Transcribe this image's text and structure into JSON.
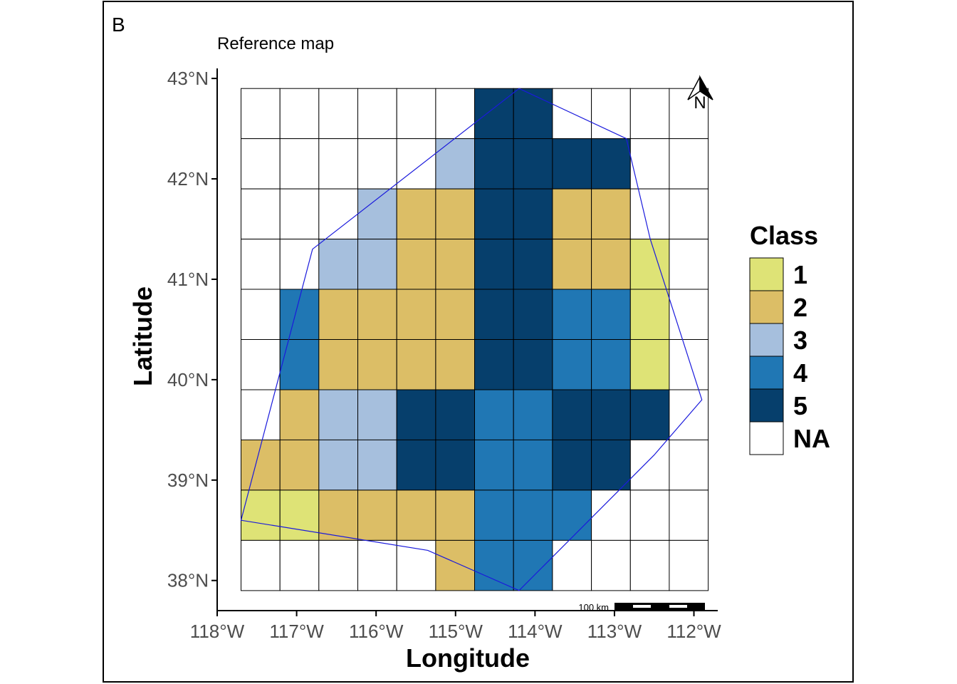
{
  "panel_label": "B",
  "title": "Reference map",
  "xlabel": "Longitude",
  "ylabel": "Latitude",
  "x_ticks": [
    {
      "value": -118,
      "label": "118°W"
    },
    {
      "value": -117,
      "label": "117°W"
    },
    {
      "value": -116,
      "label": "116°W"
    },
    {
      "value": -115,
      "label": "115°W"
    },
    {
      "value": -114,
      "label": "114°W"
    },
    {
      "value": -113,
      "label": "113°W"
    },
    {
      "value": -112,
      "label": "112°W"
    }
  ],
  "y_ticks": [
    {
      "value": 38,
      "label": "38°N"
    },
    {
      "value": 39,
      "label": "39°N"
    },
    {
      "value": 40,
      "label": "40°N"
    },
    {
      "value": 41,
      "label": "41°N"
    },
    {
      "value": 42,
      "label": "42°N"
    },
    {
      "value": 43,
      "label": "43°N"
    }
  ],
  "xlim": [
    -118,
    -111.7
  ],
  "ylim": [
    37.7,
    43.1
  ],
  "grid": {
    "lon_start": -117.7,
    "lat_top": 42.9,
    "cell_lon": 0.49,
    "cell_lat": 0.5,
    "rows": [
      [
        "NA",
        "NA",
        "NA",
        "NA",
        "NA",
        "NA",
        "5",
        "5",
        "NA",
        "NA",
        "NA",
        "NA"
      ],
      [
        "NA",
        "NA",
        "NA",
        "NA",
        "NA",
        "3",
        "5",
        "5",
        "5",
        "5",
        "NA",
        "NA"
      ],
      [
        "NA",
        "NA",
        "NA",
        "3",
        "2",
        "2",
        "5",
        "5",
        "2",
        "2",
        "NA",
        "NA"
      ],
      [
        "NA",
        "NA",
        "3",
        "3",
        "2",
        "2",
        "5",
        "5",
        "2",
        "2",
        "1",
        "NA"
      ],
      [
        "NA",
        "4",
        "2",
        "2",
        "2",
        "2",
        "5",
        "5",
        "4",
        "4",
        "1",
        "NA"
      ],
      [
        "NA",
        "4",
        "2",
        "2",
        "2",
        "2",
        "5",
        "5",
        "4",
        "4",
        "1",
        "NA"
      ],
      [
        "NA",
        "2",
        "3",
        "3",
        "5",
        "5",
        "4",
        "4",
        "5",
        "5",
        "5",
        "NA"
      ],
      [
        "2",
        "2",
        "3",
        "3",
        "5",
        "5",
        "4",
        "4",
        "5",
        "5",
        "NA",
        "NA"
      ],
      [
        "1",
        "1",
        "2",
        "2",
        "2",
        "2",
        "4",
        "4",
        "4",
        "NA",
        "NA",
        "NA"
      ],
      [
        "NA",
        "NA",
        "NA",
        "NA",
        "NA",
        "2",
        "4",
        "4",
        "NA",
        "NA",
        "NA",
        "NA"
      ]
    ]
  },
  "boundary": [
    [
      -114.2,
      42.9
    ],
    [
      -112.85,
      42.4
    ],
    [
      -112.55,
      41.4
    ],
    [
      -111.9,
      39.8
    ],
    [
      -112.5,
      39.25
    ],
    [
      -114.2,
      37.9
    ],
    [
      -115.35,
      38.3
    ],
    [
      -117.7,
      38.6
    ],
    [
      -116.8,
      41.3
    ],
    [
      -114.2,
      42.9
    ]
  ],
  "legend": {
    "title": "Class",
    "entries": [
      {
        "label": "1",
        "color": "#dee376"
      },
      {
        "label": "2",
        "color": "#dcbe66"
      },
      {
        "label": "3",
        "color": "#a6bfdd"
      },
      {
        "label": "4",
        "color": "#2077b4"
      },
      {
        "label": "5",
        "color": "#063f6c"
      },
      {
        "label": "NA",
        "color": "#ffffff"
      }
    ]
  },
  "north_arrow_label": "N",
  "scalebar_label": "100 km",
  "colors": {
    "boundary": "#1a1adc",
    "grid_line": "#000000"
  }
}
